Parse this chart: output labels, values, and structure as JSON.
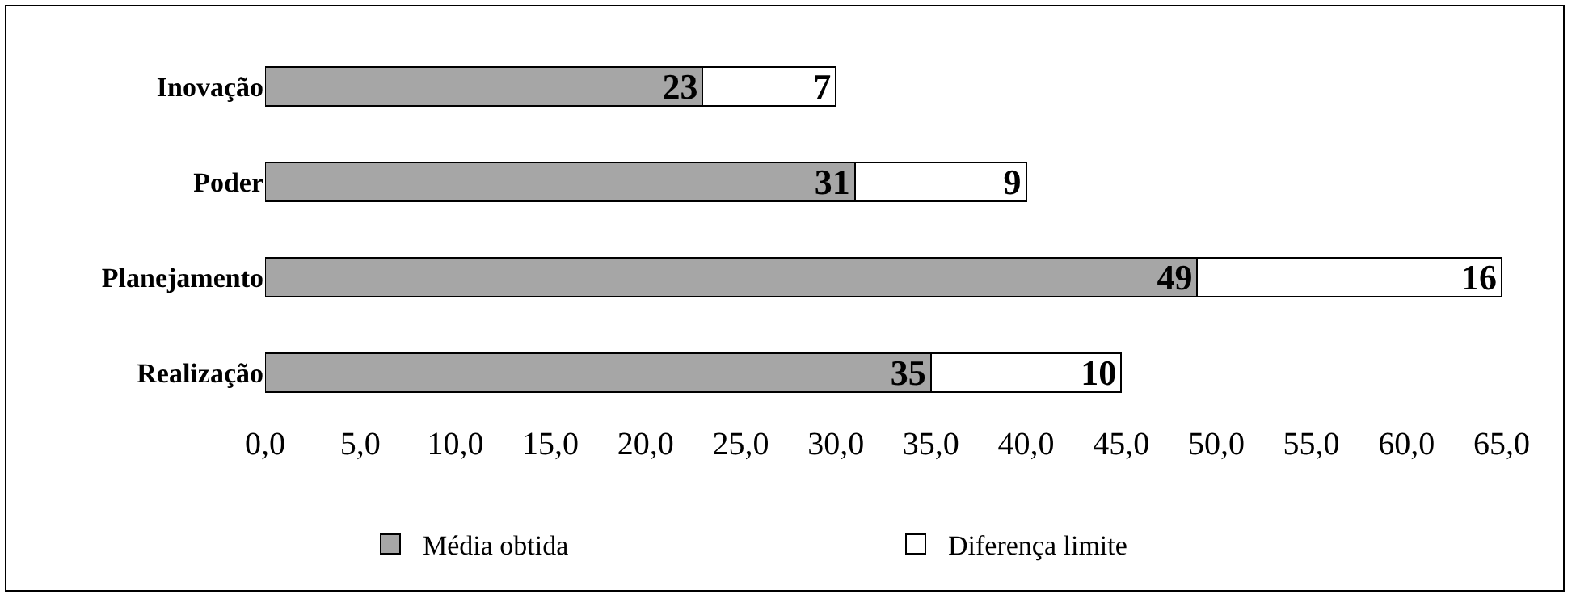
{
  "chart_data": {
    "type": "bar",
    "orientation": "horizontal",
    "stacked": true,
    "data_labels": true,
    "legend": "bottom",
    "grid": false,
    "categories": [
      "Inovação",
      "Poder",
      "Planejamento",
      "Realização"
    ],
    "series": [
      {
        "name": "Média obtida",
        "color": "#a6a6a6",
        "values": [
          23,
          31,
          49,
          35
        ]
      },
      {
        "name": "Diferença limite",
        "color": "#ffffff",
        "values": [
          7,
          9,
          16,
          10
        ]
      }
    ],
    "xlim": [
      0,
      65
    ],
    "xticks": [
      {
        "value": 0,
        "label": "0,0"
      },
      {
        "value": 5,
        "label": "5,0"
      },
      {
        "value": 10,
        "label": "10,0"
      },
      {
        "value": 15,
        "label": "15,0"
      },
      {
        "value": 20,
        "label": "20,0"
      },
      {
        "value": 25,
        "label": "25,0"
      },
      {
        "value": 30,
        "label": "30,0"
      },
      {
        "value": 35,
        "label": "35,0"
      },
      {
        "value": 40,
        "label": "40,0"
      },
      {
        "value": 45,
        "label": "45,0"
      },
      {
        "value": 50,
        "label": "50,0"
      },
      {
        "value": 55,
        "label": "55,0"
      },
      {
        "value": 60,
        "label": "60,0"
      },
      {
        "value": 65,
        "label": "65,0"
      }
    ]
  }
}
